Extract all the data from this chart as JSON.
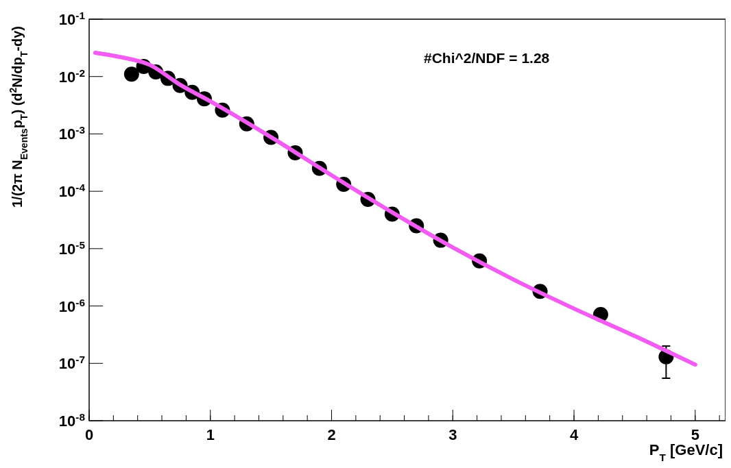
{
  "chart_data": {
    "type": "scatter",
    "xlabel": "P$_{T}$ [GeV/c]",
    "ylabel": "1/(2π N$_{Events}$p$_{T}$) (d$^{2}$N/dp$_{T}$-dy)",
    "log": "y",
    "xlim": [
      0,
      5.25
    ],
    "xticks": [
      0,
      1,
      2,
      3,
      4,
      5
    ],
    "ylim": [
      1e-08,
      0.1
    ],
    "yticks": [
      {
        "value": 1e-08,
        "label": "10$^{-8}$"
      },
      {
        "value": 1e-07,
        "label": "10$^{-7}$"
      },
      {
        "value": 1e-06,
        "label": "10$^{-6}$"
      },
      {
        "value": 1e-05,
        "label": "10$^{-5}$"
      },
      {
        "value": 0.0001,
        "label": "10$^{-4}$"
      },
      {
        "value": 0.001,
        "label": "10$^{-3}$"
      },
      {
        "value": 0.01,
        "label": "10$^{-2}$"
      },
      {
        "value": 0.1,
        "label": "10$^{-1}$"
      }
    ],
    "annotations": [
      "#Chi^2/NDF = 1.28"
    ],
    "series": [
      {
        "type": "line",
        "color": "#f25cf2",
        "line_style": "solid",
        "marker": "none",
        "x": [
          0.05,
          0.25,
          0.5,
          0.75,
          1.0,
          1.5,
          2.0,
          2.5,
          3.0,
          3.5,
          4.0,
          4.5,
          5.0
        ],
        "values": [
          0.026,
          0.022,
          0.016,
          0.0072,
          0.0037,
          0.00088,
          0.00019,
          4.3e-05,
          1.05e-05,
          2.9e-06,
          9e-07,
          3e-07,
          9.5e-08
        ]
      },
      {
        "type": "scatter",
        "color": "#000000",
        "marker": "circle",
        "x": [
          0.35,
          0.45,
          0.55,
          0.65,
          0.75,
          0.85,
          0.95,
          1.1,
          1.3,
          1.5,
          1.7,
          1.9,
          2.1,
          2.3,
          2.5,
          2.7,
          2.9,
          3.22,
          3.72,
          4.22,
          4.76
        ],
        "values": [
          0.011,
          0.015,
          0.012,
          0.0093,
          0.007,
          0.0053,
          0.0041,
          0.0026,
          0.0015,
          0.00087,
          0.00047,
          0.00025,
          0.000132,
          7.2e-05,
          4e-05,
          2.5e-05,
          1.4e-05,
          6.1e-06,
          1.8e-06,
          7.1e-07,
          1.3e-07
        ],
        "errors": [
          null,
          null,
          null,
          null,
          null,
          null,
          null,
          null,
          null,
          null,
          null,
          null,
          null,
          null,
          null,
          null,
          null,
          null,
          null,
          null,
          [
            5.5e-08,
            2e-07
          ]
        ]
      }
    ]
  }
}
